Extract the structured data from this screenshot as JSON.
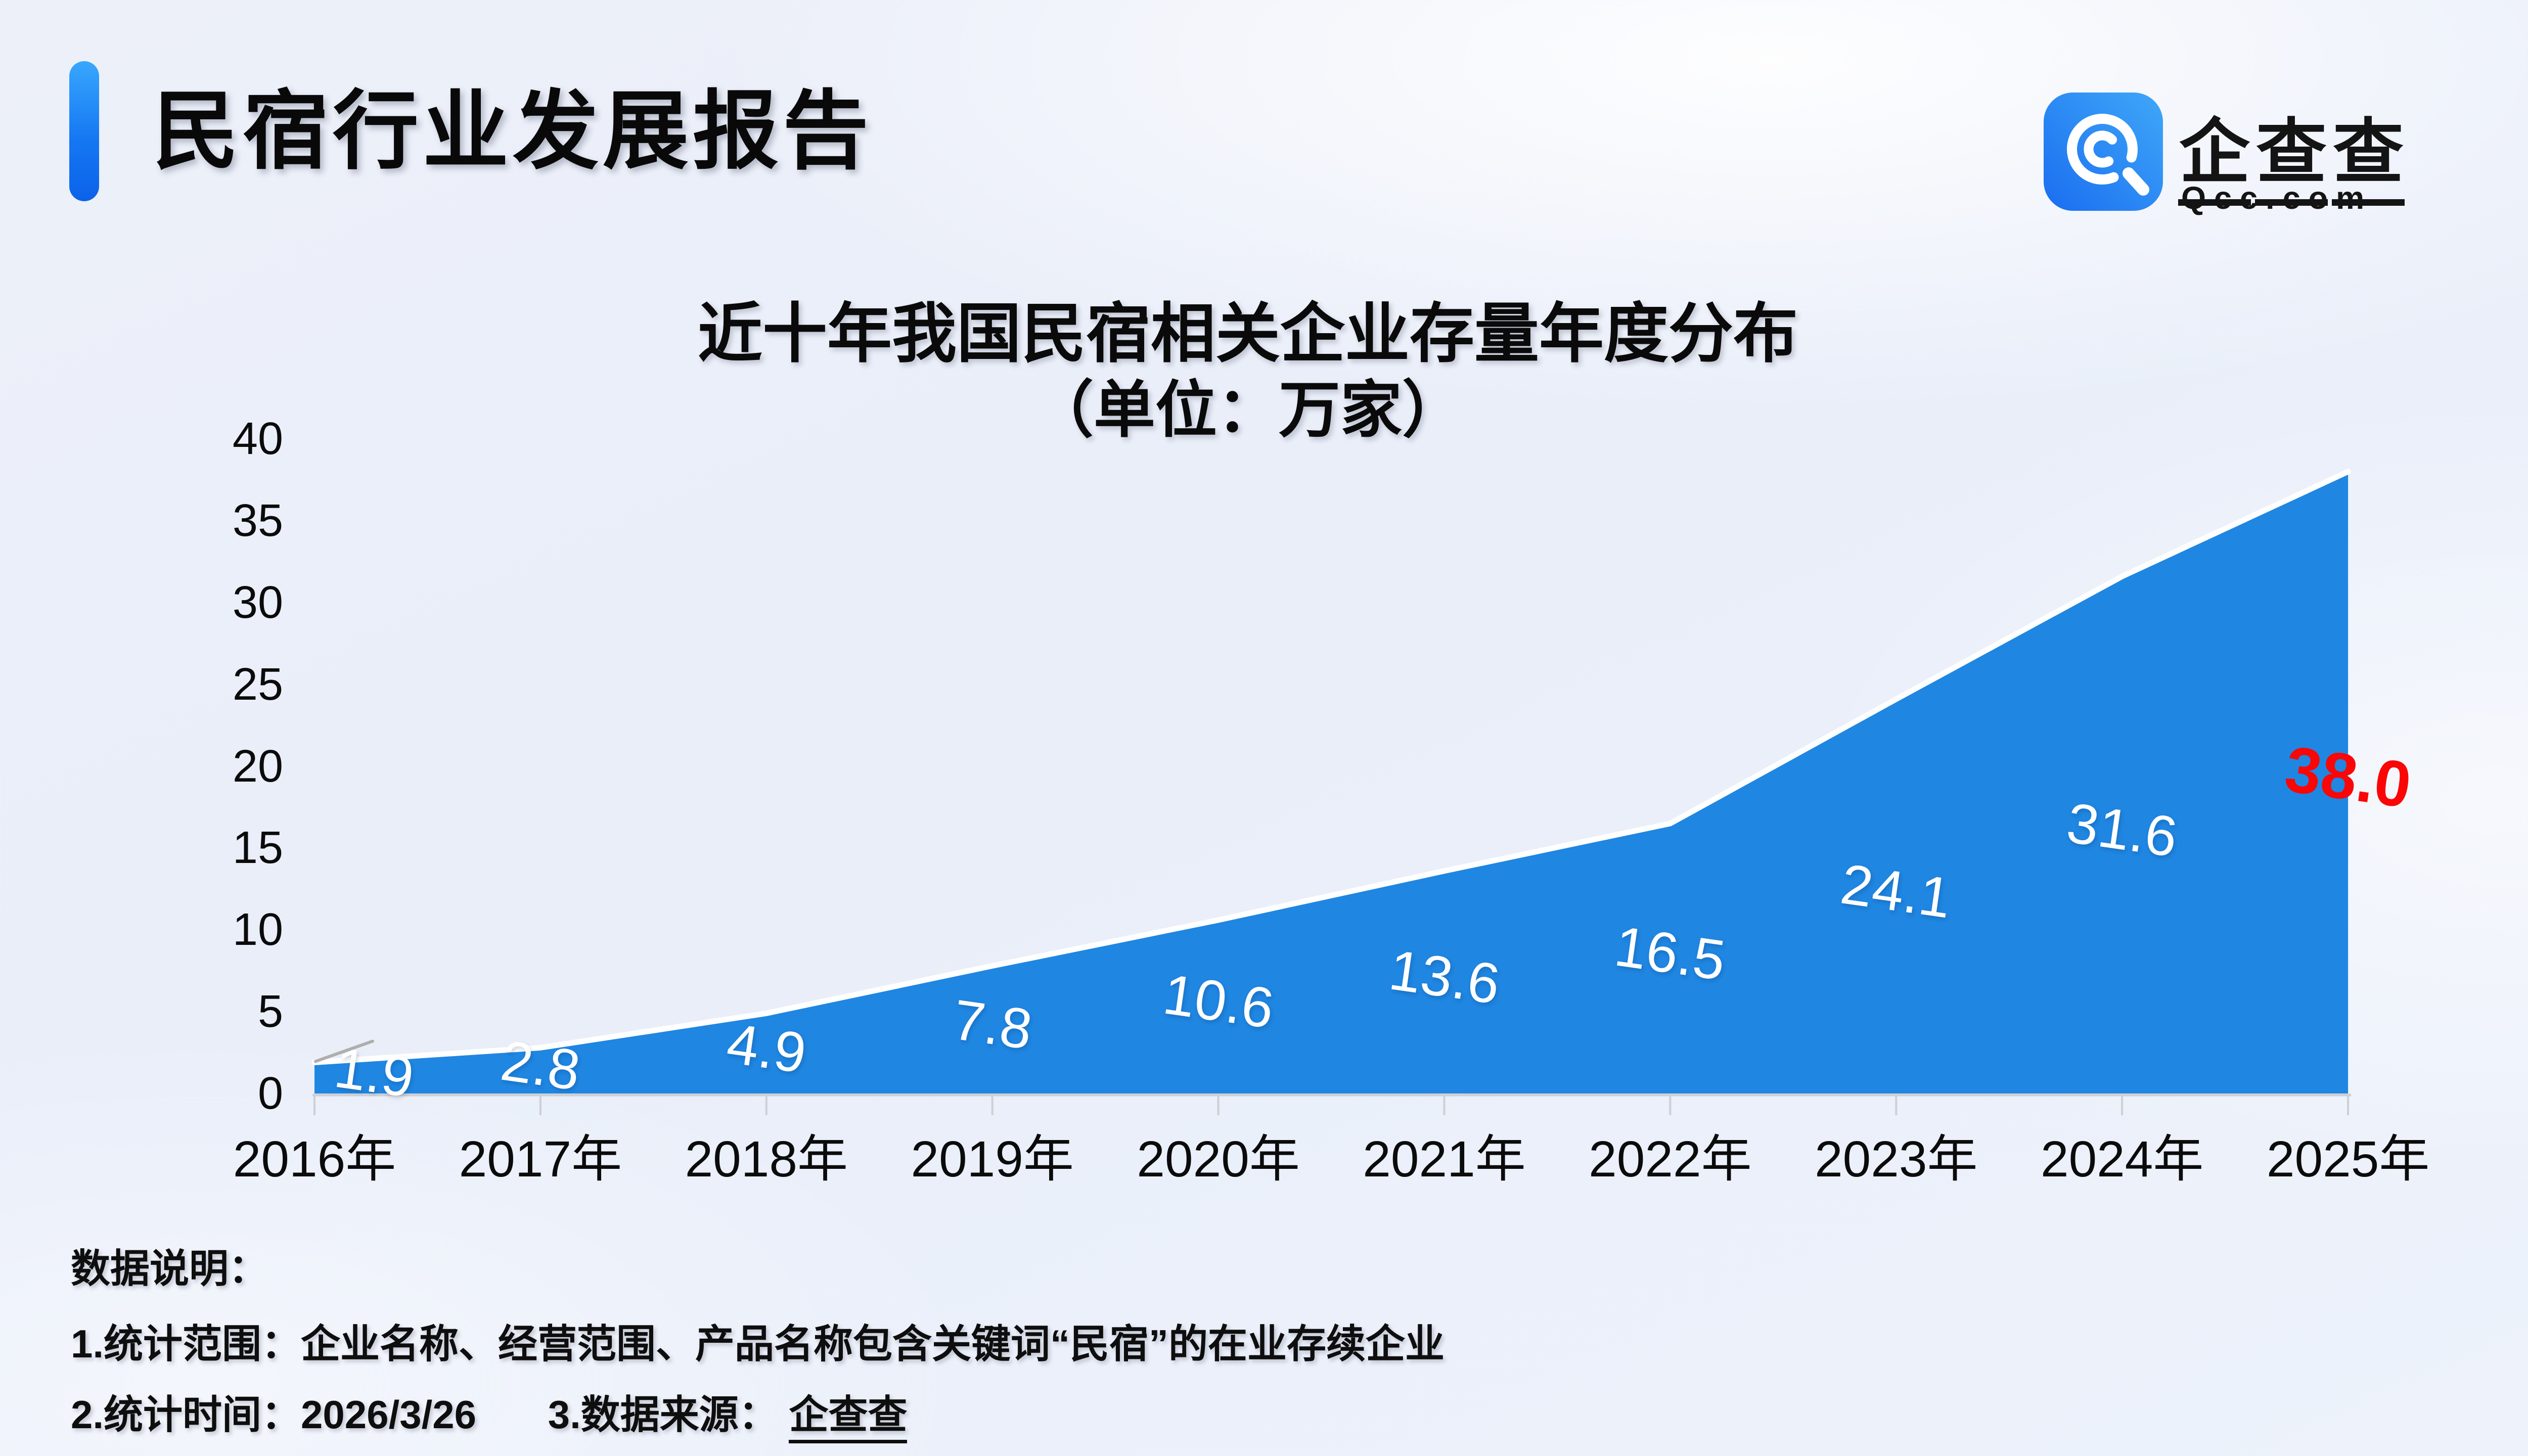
{
  "header": {
    "title": "民宿行业发展报告"
  },
  "logo": {
    "icon": "qcc-magnifier-icon",
    "cn_chars": [
      "企",
      "查",
      "查"
    ],
    "domain": "Qcc.com",
    "icon_gradient": [
      "#1a6df0",
      "#3fa8f8"
    ]
  },
  "chart_data": {
    "type": "area",
    "title": "近十年我国民宿相关企业存量年度分布",
    "subtitle": "（单位：万家）",
    "categories": [
      "2016年",
      "2017年",
      "2018年",
      "2019年",
      "2020年",
      "2021年",
      "2022年",
      "2023年",
      "2024年",
      "2025年"
    ],
    "values": [
      1.9,
      2.8,
      4.9,
      7.8,
      10.6,
      13.6,
      16.5,
      24.1,
      31.6,
      38.0
    ],
    "value_labels": [
      "1.9",
      "2.8",
      "4.9",
      "7.8",
      "10.6",
      "13.6",
      "16.5",
      "24.1",
      "31.6",
      "38.0"
    ],
    "highlight_index": 9,
    "ylim": [
      0,
      40
    ],
    "yticks": [
      0,
      5,
      10,
      15,
      20,
      25,
      30,
      35,
      40
    ],
    "grid": false,
    "legend": false,
    "colors": {
      "area": "#1f86e2",
      "line": "#ffffff",
      "axis": "#cfcfd4",
      "leader": "#aeaeae",
      "label": "#ffffff",
      "highlight_label": "#fb0606"
    }
  },
  "footer": {
    "heading": "数据说明：",
    "note_scope": "1.统计范围：企业名称、经营范围、产品名称包含关键词“民宿”的在业存续企业",
    "note_time": "2.统计时间：2026/3/26",
    "note_source_label": "3.数据来源：",
    "note_source": "企查查"
  }
}
